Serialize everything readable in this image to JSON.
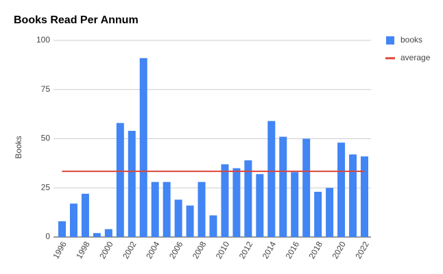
{
  "chart_data": {
    "type": "bar",
    "title": "Books Read Per Annum",
    "y_label": "Books",
    "categories": [
      "1996",
      null,
      "1998",
      null,
      "2000",
      null,
      "2002",
      null,
      "2004",
      null,
      "2006",
      null,
      "2008",
      null,
      "2010",
      null,
      "2012",
      null,
      "2014",
      null,
      "2016",
      null,
      "2018",
      null,
      "2020",
      null,
      "2022"
    ],
    "series": [
      {
        "name": "books",
        "type": "bar",
        "color": "#4285f4",
        "values": [
          8,
          17,
          22,
          2,
          4,
          58,
          54,
          91,
          28,
          28,
          19,
          16,
          28,
          11,
          37,
          35,
          39,
          32,
          59,
          51,
          33,
          50,
          23,
          25,
          48,
          42,
          41
        ]
      },
      {
        "name": "average",
        "type": "line",
        "color": "#db4437",
        "values": [
          33.4,
          33.4,
          33.4,
          33.4,
          33.4,
          33.4,
          33.4,
          33.4,
          33.4,
          33.4,
          33.4,
          33.4,
          33.4,
          33.4,
          33.4,
          33.4,
          33.4,
          33.4,
          33.4,
          33.4,
          33.4,
          33.4,
          33.4,
          33.4,
          33.4,
          33.4,
          33.4
        ]
      }
    ],
    "ylim": [
      0,
      100
    ],
    "yticks": [
      0,
      25,
      50,
      75,
      100
    ],
    "grid": true,
    "legend": "right"
  }
}
